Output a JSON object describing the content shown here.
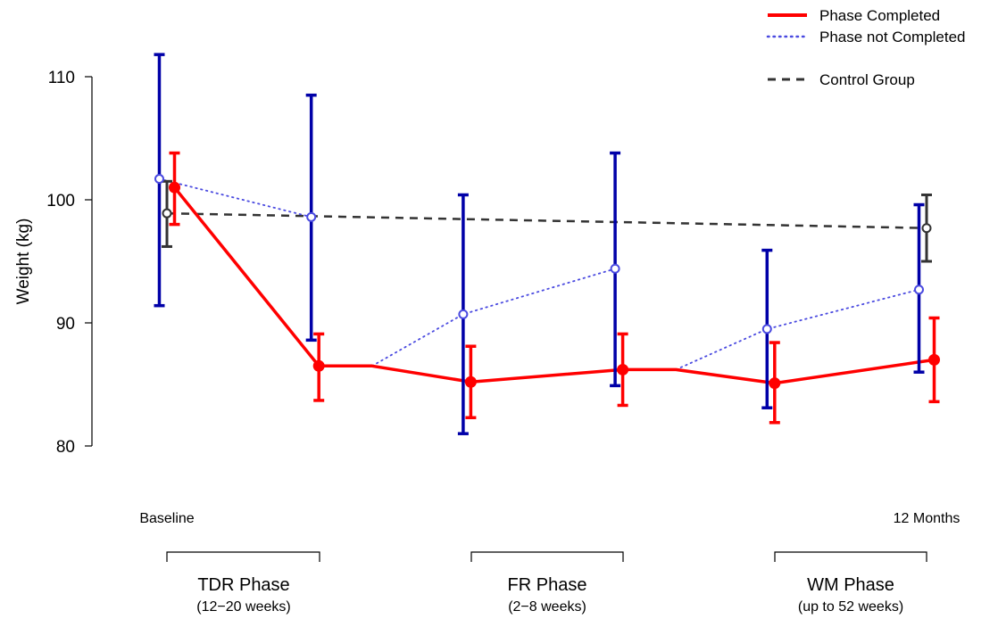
{
  "chart_data": {
    "type": "line",
    "ylabel": "Weight (kg)",
    "ylim": [
      80,
      110
    ],
    "yticks": [
      80,
      90,
      100,
      110
    ],
    "x_labels": {
      "start": "Baseline",
      "end": "12 Months"
    },
    "phases": [
      {
        "name": "TDR Phase",
        "duration": "(12−20 weeks)"
      },
      {
        "name": "FR Phase",
        "duration": "(2−8 weeks)"
      },
      {
        "name": "WM Phase",
        "duration": "(up to 52 weeks)"
      }
    ],
    "legend": {
      "position": "top-right",
      "entries": [
        "Phase Completed",
        "Phase not Completed",
        "Control Group"
      ]
    },
    "colors": {
      "completed": "#ff0000",
      "not_completed": "#0000a8",
      "not_completed_line": "#4a4ae0",
      "control": "#333333"
    },
    "series": [
      {
        "name": "Phase Completed",
        "style": "solid",
        "points": [
          {
            "x": 0.05,
            "y": 101.0,
            "lo": 98.0,
            "hi": 103.8
          },
          {
            "x": 1.0,
            "y": 86.5,
            "lo": 83.7,
            "hi": 89.1
          },
          {
            "x": 2.0,
            "y": 85.2,
            "lo": 82.3,
            "hi": 88.1
          },
          {
            "x": 3.0,
            "y": 86.2,
            "lo": 83.3,
            "hi": 89.1
          },
          {
            "x": 4.0,
            "y": 85.1,
            "lo": 81.9,
            "hi": 88.4
          },
          {
            "x": 5.05,
            "y": 87.0,
            "lo": 83.6,
            "hi": 90.4
          }
        ],
        "path": [
          [
            0.05,
            101.0
          ],
          [
            1.0,
            86.5
          ],
          [
            1.35,
            86.5
          ],
          [
            2.0,
            85.2
          ],
          [
            3.0,
            86.2
          ],
          [
            3.35,
            86.2
          ],
          [
            4.0,
            85.1
          ],
          [
            5.05,
            87.0
          ]
        ]
      },
      {
        "name": "Phase not Completed",
        "style": "dotted",
        "points": [
          {
            "x": -0.05,
            "y": 101.7,
            "lo": 91.4,
            "hi": 111.8
          },
          {
            "x": 0.95,
            "y": 98.6,
            "lo": 88.6,
            "hi": 108.5
          },
          {
            "x": 1.95,
            "y": 90.7,
            "lo": 81.0,
            "hi": 100.4
          },
          {
            "x": 2.95,
            "y": 94.4,
            "lo": 84.9,
            "hi": 103.8
          },
          {
            "x": 3.95,
            "y": 89.5,
            "lo": 83.1,
            "hi": 95.9
          },
          {
            "x": 4.95,
            "y": 92.7,
            "lo": 86.0,
            "hi": 99.6
          }
        ],
        "segments": [
          [
            [
              -0.05,
              101.7
            ],
            [
              0.95,
              98.6
            ]
          ],
          [
            [
              1.35,
              86.5
            ],
            [
              1.95,
              90.7
            ],
            [
              2.95,
              94.4
            ]
          ],
          [
            [
              3.35,
              86.2
            ],
            [
              3.95,
              89.5
            ],
            [
              4.95,
              92.7
            ]
          ]
        ]
      },
      {
        "name": "Control Group",
        "style": "dashed",
        "points": [
          {
            "x": 0.0,
            "y": 98.9,
            "lo": 96.2,
            "hi": 101.5
          },
          {
            "x": 5.0,
            "y": 97.7,
            "lo": 95.0,
            "hi": 100.4
          }
        ]
      }
    ]
  }
}
